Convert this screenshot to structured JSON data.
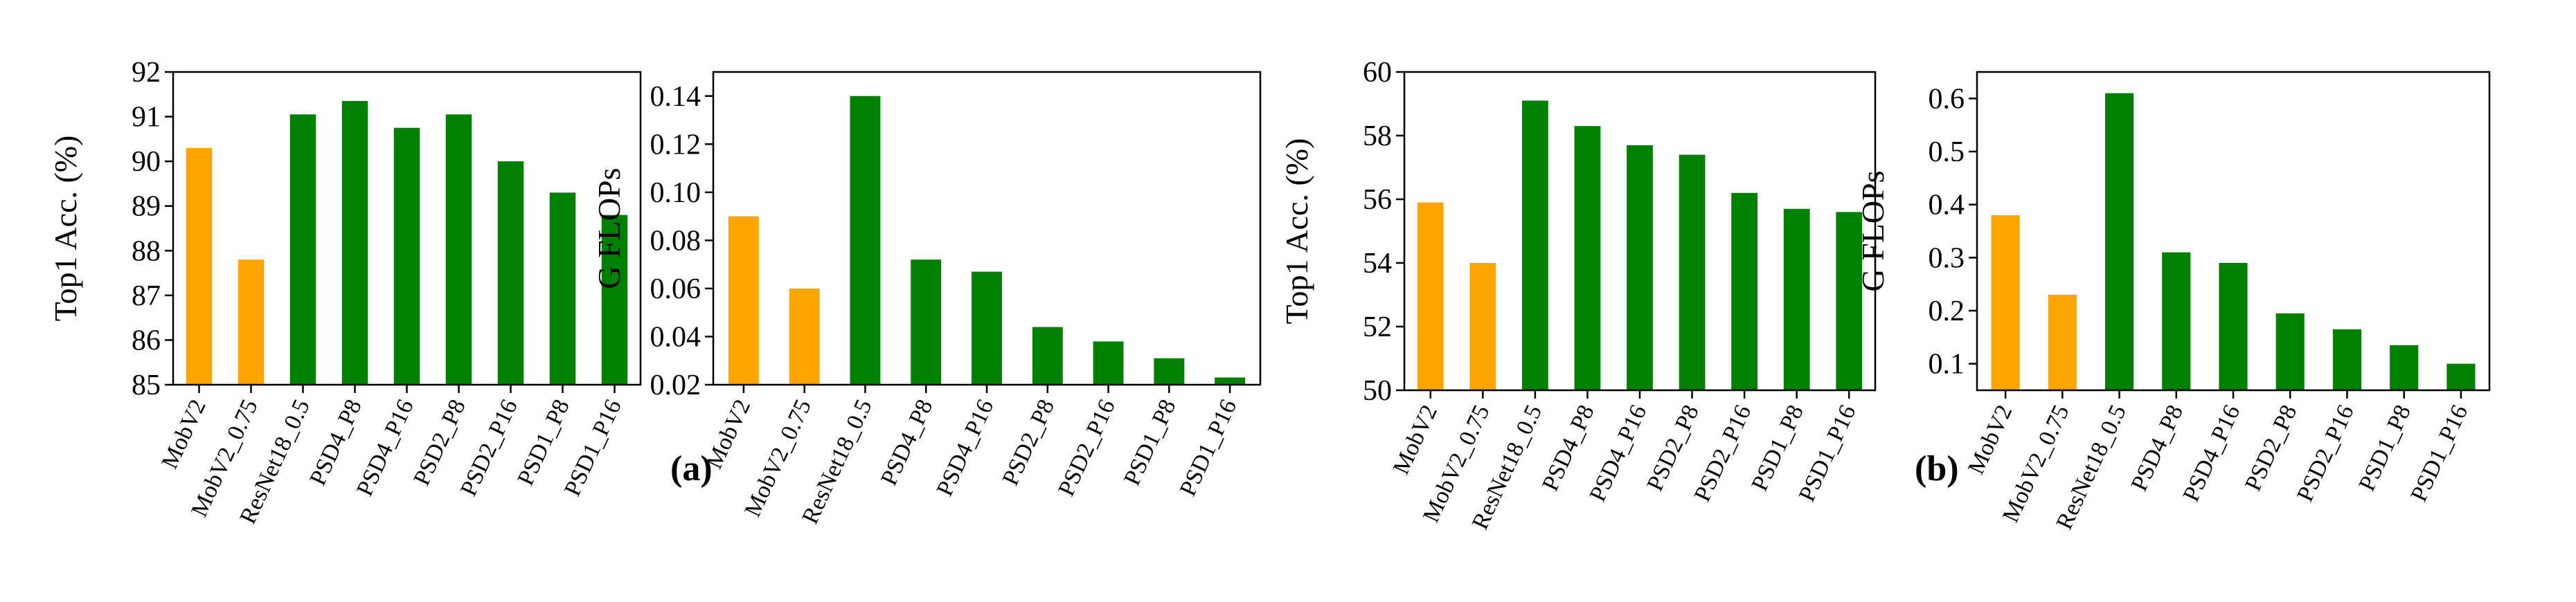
{
  "labels": {
    "a": "(a)",
    "b": "(b)"
  },
  "colors": {
    "baseline": "#ffa500",
    "proposed": "#008000"
  },
  "chart_data": [
    {
      "type": "bar",
      "ylabel": "Top1 Acc. (%)",
      "ylim": [
        85,
        92
      ],
      "yticks": [
        85,
        86,
        87,
        88,
        89,
        90,
        91,
        92
      ],
      "categories": [
        "MobV2",
        "MobV2_0.75",
        "ResNet18_0.5",
        "PSD4_P8",
        "PSD4_P16",
        "PSD2_P8",
        "PSD2_P16",
        "PSD1_P8",
        "PSD1_P16"
      ],
      "values": [
        90.3,
        87.8,
        91.05,
        91.35,
        90.75,
        91.05,
        90.0,
        89.3,
        88.8
      ],
      "bar_colors": [
        "baseline",
        "baseline",
        "proposed",
        "proposed",
        "proposed",
        "proposed",
        "proposed",
        "proposed",
        "proposed"
      ]
    },
    {
      "type": "bar",
      "ylabel": "G FLOPs",
      "ylim": [
        0.02,
        0.15
      ],
      "yticks": [
        0.02,
        0.04,
        0.06,
        0.08,
        0.1,
        0.12,
        0.14
      ],
      "ytick_labels": [
        "0.02",
        "0.04",
        "0.06",
        "0.08",
        "0.10",
        "0.12",
        "0.14"
      ],
      "categories": [
        "MobV2",
        "MobV2_0.75",
        "ResNet18_0.5",
        "PSD4_P8",
        "PSD4_P16",
        "PSD2_P8",
        "PSD2_P16",
        "PSD1_P8",
        "PSD1_P16"
      ],
      "values": [
        0.09,
        0.06,
        0.14,
        0.072,
        0.067,
        0.044,
        0.038,
        0.031,
        0.023
      ],
      "bar_colors": [
        "baseline",
        "baseline",
        "proposed",
        "proposed",
        "proposed",
        "proposed",
        "proposed",
        "proposed",
        "proposed"
      ]
    },
    {
      "type": "bar",
      "ylabel": "Top1 Acc. (%)",
      "ylim": [
        50,
        60
      ],
      "yticks": [
        50,
        52,
        54,
        56,
        58,
        60
      ],
      "categories": [
        "MobV2",
        "MobV2_0.75",
        "ResNet18_0.5",
        "PSD4_P8",
        "PSD4_P16",
        "PSD2_P8",
        "PSD2_P16",
        "PSD1_P8",
        "PSD1_P16"
      ],
      "values": [
        55.9,
        54.0,
        59.1,
        58.3,
        57.7,
        57.4,
        56.2,
        55.7,
        55.6
      ],
      "bar_colors": [
        "baseline",
        "baseline",
        "proposed",
        "proposed",
        "proposed",
        "proposed",
        "proposed",
        "proposed",
        "proposed"
      ]
    },
    {
      "type": "bar",
      "ylabel": "G FLOPs",
      "ylim": [
        0.05,
        0.65
      ],
      "yticks": [
        0.1,
        0.2,
        0.3,
        0.4,
        0.5,
        0.6
      ],
      "categories": [
        "MobV2",
        "MobV2_0.75",
        "ResNet18_0.5",
        "PSD4_P8",
        "PSD4_P16",
        "PSD2_P8",
        "PSD2_P16",
        "PSD1_P8",
        "PSD1_P16"
      ],
      "values": [
        0.38,
        0.23,
        0.61,
        0.31,
        0.29,
        0.195,
        0.165,
        0.135,
        0.1
      ],
      "bar_colors": [
        "baseline",
        "baseline",
        "proposed",
        "proposed",
        "proposed",
        "proposed",
        "proposed",
        "proposed",
        "proposed"
      ]
    }
  ]
}
